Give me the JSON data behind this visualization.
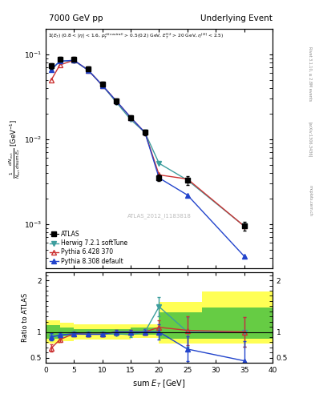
{
  "title_left": "7000 GeV pp",
  "title_right": "Underlying Event",
  "annotation": "ATLAS_2012_I1183818",
  "rivet_text": "Rivet 3.1.10, ≥ 2.8M events",
  "arxiv_text": "[arXiv:1306.3436]",
  "mcplots_text": "mcplots.cern.ch",
  "ylabel_main": "$\\frac{1}{N_{\\mathrm{evt}}} \\frac{d\\,N_{\\mathrm{evt}}}{d\\,\\mathrm{sum}\\,E_T}$ [GeV$^{-1}$]",
  "ylabel_ratio": "Ratio to ATLAS",
  "xlabel": "sum $E_T$ [GeV]",
  "xlim": [
    0,
    40
  ],
  "atlas_x": [
    1.0,
    2.5,
    5.0,
    7.5,
    10.0,
    12.5,
    15.0,
    17.5,
    20.0,
    25.0,
    35.0
  ],
  "atlas_y": [
    0.073,
    0.088,
    0.088,
    0.068,
    0.045,
    0.028,
    0.018,
    0.012,
    0.0035,
    0.0033,
    0.00095
  ],
  "atlas_yerr_lo": [
    0.005,
    0.005,
    0.005,
    0.004,
    0.003,
    0.002,
    0.001,
    0.001,
    0.0003,
    0.0004,
    0.00012
  ],
  "atlas_yerr_hi": [
    0.005,
    0.005,
    0.005,
    0.004,
    0.003,
    0.002,
    0.001,
    0.001,
    0.0003,
    0.0004,
    0.00012
  ],
  "herwig_x": [
    1.0,
    2.5,
    5.0,
    7.5,
    10.0,
    12.5,
    15.0,
    17.5,
    20.0,
    25.0,
    35.0
  ],
  "herwig_y": [
    0.066,
    0.083,
    0.084,
    0.065,
    0.043,
    0.027,
    0.017,
    0.012,
    0.0052,
    0.0033,
    0.00095
  ],
  "herwig_color": "#3d9e9e",
  "pythia6_x": [
    1.0,
    2.5,
    5.0,
    7.5,
    10.0,
    12.5,
    15.0,
    17.5,
    20.0,
    25.0,
    35.0
  ],
  "pythia6_y": [
    0.05,
    0.075,
    0.085,
    0.065,
    0.043,
    0.028,
    0.018,
    0.012,
    0.0038,
    0.0034,
    0.00095
  ],
  "pythia6_color": "#cc3333",
  "pythia8_x": [
    1.0,
    2.5,
    5.0,
    7.5,
    10.0,
    12.5,
    15.0,
    17.5,
    20.0,
    25.0,
    35.0
  ],
  "pythia8_y": [
    0.066,
    0.083,
    0.085,
    0.065,
    0.043,
    0.028,
    0.018,
    0.012,
    0.0035,
    0.0022,
    0.00042
  ],
  "pythia8_color": "#2244cc",
  "ratio_x": [
    1.0,
    2.5,
    5.0,
    7.5,
    10.0,
    12.5,
    15.0,
    17.5,
    20.0,
    25.0,
    35.0
  ],
  "herwig_ratio": [
    0.9,
    0.94,
    0.955,
    0.955,
    0.955,
    0.965,
    0.945,
    1.0,
    1.49,
    1.0,
    1.0
  ],
  "pythia6_ratio": [
    0.685,
    0.852,
    0.966,
    0.955,
    0.955,
    1.0,
    1.0,
    1.0,
    1.09,
    1.03,
    1.0
  ],
  "pythia8_ratio": [
    0.9,
    0.94,
    0.966,
    0.955,
    0.955,
    1.0,
    1.0,
    1.0,
    1.0,
    0.667,
    0.44
  ],
  "herwig_ratio_err_lo": [
    0.07,
    0.05,
    0.04,
    0.04,
    0.04,
    0.04,
    0.04,
    0.05,
    0.18,
    0.28,
    0.28
  ],
  "herwig_ratio_err_hi": [
    0.07,
    0.05,
    0.04,
    0.04,
    0.04,
    0.04,
    0.04,
    0.05,
    0.18,
    0.28,
    0.28
  ],
  "pythia6_ratio_err_lo": [
    0.07,
    0.05,
    0.04,
    0.04,
    0.04,
    0.04,
    0.04,
    0.05,
    0.14,
    0.28,
    0.28
  ],
  "pythia6_ratio_err_hi": [
    0.07,
    0.05,
    0.04,
    0.04,
    0.04,
    0.04,
    0.04,
    0.05,
    0.14,
    0.28,
    0.28
  ],
  "pythia8_ratio_err_lo": [
    0.07,
    0.05,
    0.04,
    0.04,
    0.04,
    0.04,
    0.04,
    0.05,
    0.14,
    0.24,
    0.38
  ],
  "pythia8_ratio_err_hi": [
    0.07,
    0.05,
    0.04,
    0.04,
    0.04,
    0.04,
    0.04,
    0.05,
    0.14,
    0.24,
    0.38
  ],
  "band_edges": [
    0.0,
    2.5,
    5.0,
    7.5,
    10.0,
    12.5,
    15.0,
    17.5,
    20.0,
    27.5,
    40.0
  ],
  "green_lo": [
    0.87,
    0.92,
    0.94,
    0.94,
    0.94,
    0.94,
    0.94,
    0.94,
    0.87,
    0.87,
    0.87
  ],
  "green_hi": [
    1.13,
    1.08,
    1.06,
    1.06,
    1.06,
    1.06,
    1.08,
    1.08,
    1.38,
    1.48,
    1.48
  ],
  "yellow_lo": [
    0.77,
    0.82,
    0.86,
    0.86,
    0.86,
    0.86,
    0.88,
    0.88,
    0.77,
    0.77,
    0.62
  ],
  "yellow_hi": [
    1.23,
    1.18,
    1.14,
    1.14,
    1.14,
    1.14,
    1.14,
    1.14,
    1.58,
    1.78,
    2.0
  ]
}
